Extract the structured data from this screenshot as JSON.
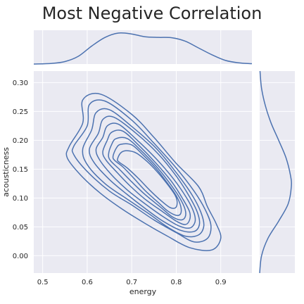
{
  "chart_data": {
    "type": "kde_joint",
    "title": "Most Negative Correlation",
    "xlabel": "energy",
    "ylabel": "acousticness",
    "xlim": [
      0.48,
      0.97
    ],
    "ylim": [
      -0.03,
      0.32
    ],
    "x_ticks": [
      0.5,
      0.6,
      0.7,
      0.8,
      0.9
    ],
    "x_tick_labels": [
      "0.5",
      "0.6",
      "0.7",
      "0.8",
      "0.9"
    ],
    "y_ticks": [
      0.0,
      0.05,
      0.1,
      0.15,
      0.2,
      0.25,
      0.3
    ],
    "y_tick_labels": [
      "0.00",
      "0.05",
      "0.10",
      "0.15",
      "0.20",
      "0.25",
      "0.30"
    ],
    "grid": true,
    "color": "#4c72b0",
    "background": "#eaeaf2",
    "marginal_x": {
      "x": [
        0.48,
        0.52,
        0.55,
        0.58,
        0.61,
        0.64,
        0.67,
        0.7,
        0.73,
        0.76,
        0.79,
        0.82,
        0.85,
        0.88,
        0.91,
        0.94,
        0.97
      ],
      "density": [
        0.0,
        0.02,
        0.08,
        0.25,
        0.58,
        0.86,
        1.0,
        0.97,
        0.88,
        0.86,
        0.85,
        0.74,
        0.52,
        0.3,
        0.12,
        0.04,
        0.01
      ]
    },
    "marginal_y": {
      "y": [
        -0.03,
        0.0,
        0.03,
        0.06,
        0.09,
        0.12,
        0.14,
        0.17,
        0.2,
        0.23,
        0.26,
        0.29,
        0.32
      ],
      "density": [
        0.0,
        0.06,
        0.26,
        0.6,
        0.9,
        1.0,
        0.97,
        0.83,
        0.6,
        0.36,
        0.18,
        0.06,
        0.01
      ]
    },
    "contours": [
      [
        [
          0.56,
          0.19
        ],
        [
          0.59,
          0.23
        ],
        [
          0.59,
          0.27
        ],
        [
          0.63,
          0.28
        ],
        [
          0.7,
          0.245
        ],
        [
          0.75,
          0.205
        ],
        [
          0.8,
          0.16
        ],
        [
          0.85,
          0.12
        ],
        [
          0.87,
          0.085
        ],
        [
          0.89,
          0.055
        ],
        [
          0.9,
          0.03
        ],
        [
          0.88,
          0.01
        ],
        [
          0.83,
          0.014
        ],
        [
          0.78,
          0.034
        ],
        [
          0.73,
          0.056
        ],
        [
          0.68,
          0.08
        ],
        [
          0.63,
          0.108
        ],
        [
          0.585,
          0.14
        ],
        [
          0.555,
          0.17
        ]
      ],
      [
        [
          0.57,
          0.19
        ],
        [
          0.6,
          0.225
        ],
        [
          0.605,
          0.262
        ],
        [
          0.64,
          0.268
        ],
        [
          0.7,
          0.235
        ],
        [
          0.75,
          0.195
        ],
        [
          0.8,
          0.152
        ],
        [
          0.84,
          0.112
        ],
        [
          0.865,
          0.08
        ],
        [
          0.878,
          0.052
        ],
        [
          0.87,
          0.03
        ],
        [
          0.84,
          0.024
        ],
        [
          0.8,
          0.04
        ],
        [
          0.75,
          0.062
        ],
        [
          0.7,
          0.088
        ],
        [
          0.65,
          0.112
        ],
        [
          0.6,
          0.146
        ],
        [
          0.57,
          0.175
        ]
      ],
      [
        [
          0.59,
          0.185
        ],
        [
          0.61,
          0.218
        ],
        [
          0.62,
          0.248
        ],
        [
          0.65,
          0.253
        ],
        [
          0.7,
          0.224
        ],
        [
          0.755,
          0.186
        ],
        [
          0.8,
          0.144
        ],
        [
          0.835,
          0.106
        ],
        [
          0.855,
          0.076
        ],
        [
          0.862,
          0.052
        ],
        [
          0.85,
          0.036
        ],
        [
          0.82,
          0.034
        ],
        [
          0.78,
          0.05
        ],
        [
          0.74,
          0.072
        ],
        [
          0.69,
          0.098
        ],
        [
          0.64,
          0.125
        ],
        [
          0.6,
          0.158
        ]
      ],
      [
        [
          0.605,
          0.185
        ],
        [
          0.625,
          0.212
        ],
        [
          0.635,
          0.236
        ],
        [
          0.66,
          0.24
        ],
        [
          0.71,
          0.212
        ],
        [
          0.76,
          0.176
        ],
        [
          0.8,
          0.138
        ],
        [
          0.83,
          0.102
        ],
        [
          0.848,
          0.074
        ],
        [
          0.852,
          0.054
        ],
        [
          0.84,
          0.042
        ],
        [
          0.81,
          0.044
        ],
        [
          0.77,
          0.06
        ],
        [
          0.73,
          0.082
        ],
        [
          0.69,
          0.106
        ],
        [
          0.65,
          0.132
        ],
        [
          0.615,
          0.162
        ]
      ],
      [
        [
          0.62,
          0.185
        ],
        [
          0.635,
          0.205
        ],
        [
          0.645,
          0.225
        ],
        [
          0.67,
          0.228
        ],
        [
          0.71,
          0.202
        ],
        [
          0.755,
          0.168
        ],
        [
          0.795,
          0.132
        ],
        [
          0.825,
          0.098
        ],
        [
          0.84,
          0.074
        ],
        [
          0.842,
          0.058
        ],
        [
          0.83,
          0.048
        ],
        [
          0.805,
          0.052
        ],
        [
          0.77,
          0.068
        ],
        [
          0.73,
          0.09
        ],
        [
          0.69,
          0.114
        ],
        [
          0.655,
          0.14
        ],
        [
          0.628,
          0.166
        ]
      ],
      [
        [
          0.635,
          0.18
        ],
        [
          0.645,
          0.2
        ],
        [
          0.655,
          0.214
        ],
        [
          0.68,
          0.216
        ],
        [
          0.715,
          0.192
        ],
        [
          0.755,
          0.16
        ],
        [
          0.79,
          0.128
        ],
        [
          0.815,
          0.098
        ],
        [
          0.83,
          0.076
        ],
        [
          0.83,
          0.062
        ],
        [
          0.82,
          0.054
        ],
        [
          0.8,
          0.06
        ],
        [
          0.77,
          0.076
        ],
        [
          0.73,
          0.098
        ],
        [
          0.695,
          0.122
        ],
        [
          0.665,
          0.146
        ],
        [
          0.642,
          0.166
        ]
      ],
      [
        [
          0.648,
          0.176
        ],
        [
          0.655,
          0.193
        ],
        [
          0.665,
          0.203
        ],
        [
          0.69,
          0.203
        ],
        [
          0.72,
          0.183
        ],
        [
          0.755,
          0.155
        ],
        [
          0.785,
          0.126
        ],
        [
          0.808,
          0.1
        ],
        [
          0.82,
          0.08
        ],
        [
          0.82,
          0.067
        ],
        [
          0.81,
          0.062
        ],
        [
          0.79,
          0.068
        ],
        [
          0.765,
          0.084
        ],
        [
          0.73,
          0.106
        ],
        [
          0.7,
          0.128
        ],
        [
          0.672,
          0.15
        ],
        [
          0.652,
          0.165
        ]
      ],
      [
        [
          0.658,
          0.172
        ],
        [
          0.665,
          0.186
        ],
        [
          0.675,
          0.193
        ],
        [
          0.7,
          0.192
        ],
        [
          0.725,
          0.175
        ],
        [
          0.755,
          0.151
        ],
        [
          0.78,
          0.126
        ],
        [
          0.8,
          0.104
        ],
        [
          0.81,
          0.086
        ],
        [
          0.81,
          0.073
        ],
        [
          0.8,
          0.07
        ],
        [
          0.78,
          0.078
        ],
        [
          0.76,
          0.092
        ],
        [
          0.73,
          0.113
        ],
        [
          0.705,
          0.134
        ],
        [
          0.68,
          0.154
        ],
        [
          0.662,
          0.165
        ]
      ],
      [
        [
          0.668,
          0.167
        ],
        [
          0.675,
          0.178
        ],
        [
          0.688,
          0.182
        ],
        [
          0.71,
          0.178
        ],
        [
          0.735,
          0.163
        ],
        [
          0.76,
          0.143
        ],
        [
          0.782,
          0.122
        ],
        [
          0.798,
          0.104
        ],
        [
          0.802,
          0.092
        ],
        [
          0.798,
          0.083
        ],
        [
          0.785,
          0.084
        ],
        [
          0.765,
          0.096
        ],
        [
          0.74,
          0.114
        ],
        [
          0.715,
          0.134
        ],
        [
          0.69,
          0.152
        ],
        [
          0.672,
          0.162
        ]
      ]
    ]
  }
}
